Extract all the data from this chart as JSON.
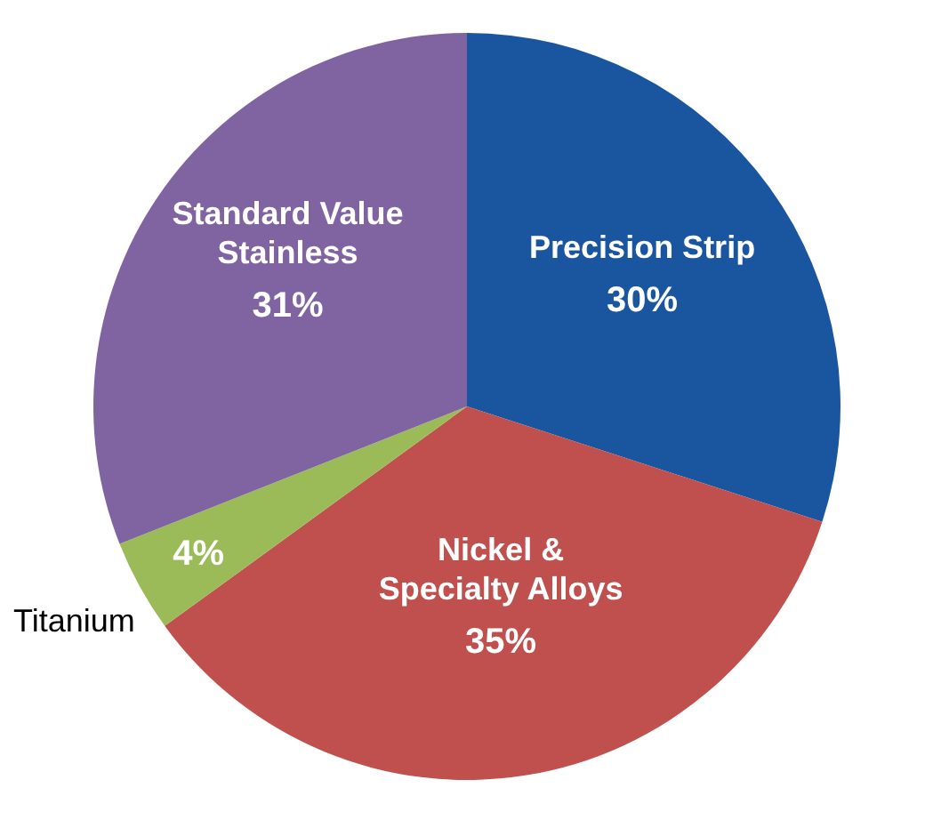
{
  "chart_data": {
    "type": "pie",
    "categories": [
      "Precision Strip",
      "Nickel & Specialty Alloys",
      "Titanium",
      "Standard Value Stainless"
    ],
    "values": [
      30,
      35,
      4,
      31
    ],
    "value_labels": [
      "30%",
      "35%",
      "4%",
      "31%"
    ],
    "colors": [
      "#1a55a0",
      "#c0504d",
      "#9bbb59",
      "#8064a2"
    ]
  }
}
